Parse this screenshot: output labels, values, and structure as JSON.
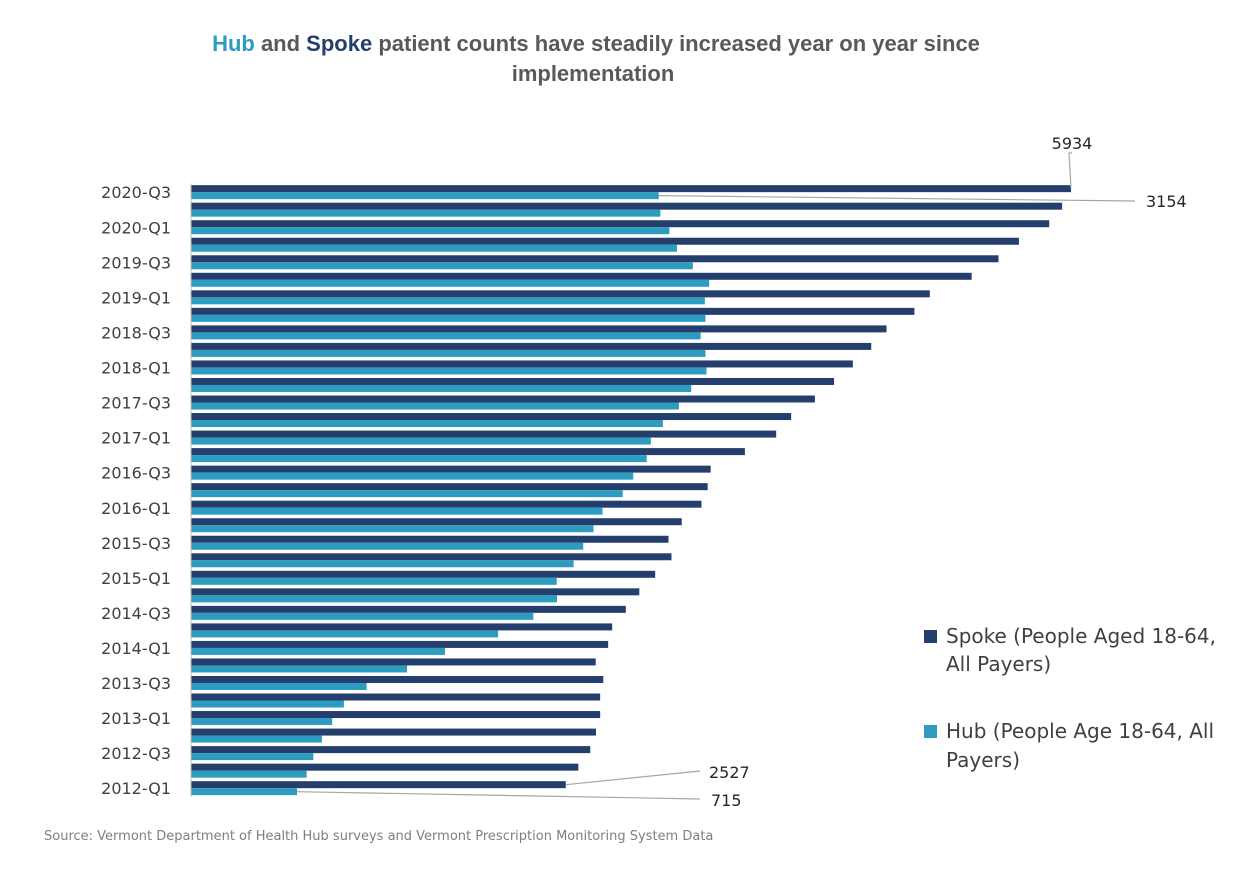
{
  "chart_data": {
    "type": "bar",
    "orientation": "horizontal",
    "title_parts": {
      "hub": "Hub",
      "and": " and ",
      "spoke": "Spoke",
      "rest_line1": "  patient counts have steadily increased year on year since",
      "line2": "implementation"
    },
    "categories": [
      "2012-Q1",
      "2012-Q2",
      "2012-Q3",
      "2012-Q4",
      "2013-Q1",
      "2013-Q2",
      "2013-Q3",
      "2013-Q4",
      "2014-Q1",
      "2014-Q2",
      "2014-Q3",
      "2014-Q4",
      "2015-Q1",
      "2015-Q2",
      "2015-Q3",
      "2015-Q4",
      "2016-Q1",
      "2016-Q2",
      "2016-Q3",
      "2016-Q4",
      "2017-Q1",
      "2017-Q2",
      "2017-Q3",
      "2017-Q4",
      "2018-Q1",
      "2018-Q2",
      "2018-Q3",
      "2018-Q4",
      "2019-Q1",
      "2019-Q2",
      "2019-Q3",
      "2019-Q4",
      "2020-Q1",
      "2020-Q2",
      "2020-Q3"
    ],
    "tick_labels": [
      "2012-Q1",
      "2012-Q3",
      "2013-Q1",
      "2013-Q3",
      "2014-Q1",
      "2014-Q3",
      "2015-Q1",
      "2015-Q3",
      "2016-Q1",
      "2016-Q3",
      "2017-Q1",
      "2017-Q3",
      "2018-Q1",
      "2018-Q3",
      "2019-Q1",
      "2019-Q3",
      "2020-Q1",
      "2020-Q3"
    ],
    "series": [
      {
        "name": "Spoke (People Aged 18-64, All Payers)",
        "legend_lines": [
          "Spoke (People Aged 18-64,",
          "All Payers)"
        ],
        "color": "#243f6e",
        "values": [
          2527,
          2612,
          2692,
          2731,
          2759,
          2759,
          2780,
          2729,
          2813,
          2840,
          2932,
          3023,
          3130,
          3240,
          3220,
          3309,
          3442,
          3484,
          3504,
          3735,
          3946,
          4047,
          4207,
          4336,
          4463,
          4587,
          4690,
          4878,
          4982,
          5264,
          5445,
          5583,
          5787,
          5874,
          5934
        ]
      },
      {
        "name": "Hub (People Age 18-64, All Payers)",
        "legend_lines": [
          "Hub (People Age 18-64, All",
          "Payers)"
        ],
        "color": "#2e9cc0",
        "values": [
          715,
          780,
          825,
          883,
          952,
          1031,
          1184,
          1457,
          1713,
          2071,
          2308,
          2468,
          2466,
          2580,
          2645,
          2714,
          2775,
          2911,
          2982,
          3073,
          3101,
          3182,
          3290,
          3373,
          3476,
          3469,
          3437,
          3469,
          3465,
          3494,
          3384,
          3277,
          3226,
          3165,
          3154
        ]
      }
    ],
    "data_labels": {
      "spoke_first": "2527",
      "hub_first": "715",
      "spoke_last": "5934",
      "hub_last": "3154"
    },
    "xlim": [
      0,
      6000
    ],
    "grid": false,
    "legend_position": "right",
    "source": "Source: Vermont Department of Health Hub surveys and Vermont Prescription Monitoring System Data"
  },
  "colors": {
    "hub_title": "#2e9cc0",
    "spoke_title": "#243f6e",
    "title_text": "#595959",
    "leader": "#a6a6a6",
    "axis": "#bfbfbf"
  }
}
